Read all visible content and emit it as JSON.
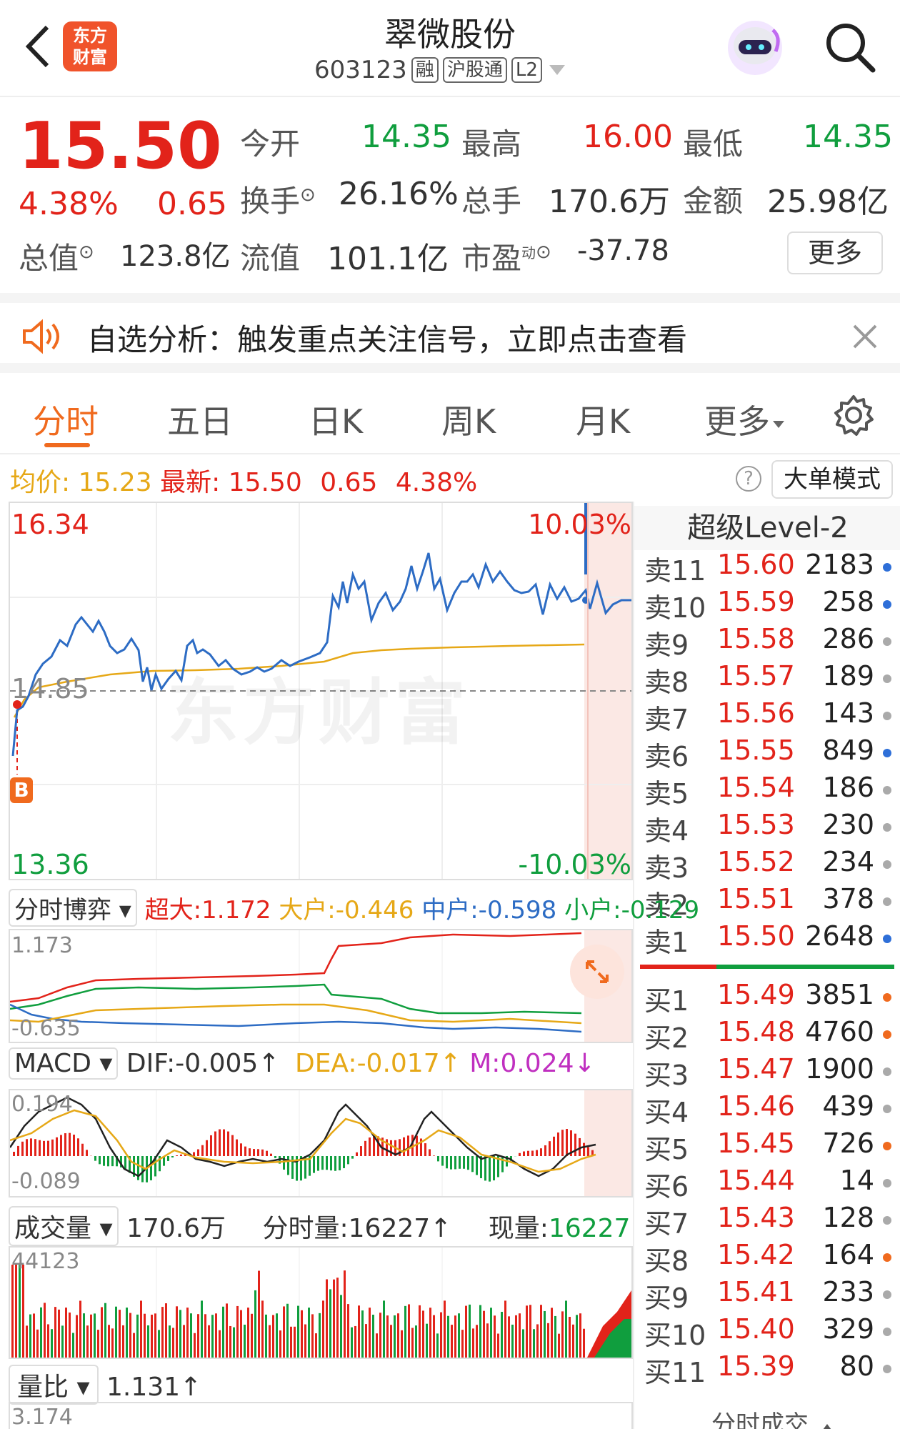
{
  "header": {
    "back_label": "<",
    "logo_line1": "东方",
    "logo_line2": "财富",
    "title": "翠微股份",
    "code": "603123",
    "tags": [
      "融",
      "沪股通",
      "L2"
    ]
  },
  "quote": {
    "price": "15.50",
    "change_pct": "4.38%",
    "change": "0.65",
    "open_label": "今开",
    "open": "14.35",
    "high_label": "最高",
    "high": "16.00",
    "low_label": "最低",
    "low": "14.35",
    "turnover_label": "换手",
    "turnover": "26.16%",
    "volume_label": "总手",
    "volume": "170.6万",
    "amount_label": "金额",
    "amount": "25.98亿",
    "mktcap_label": "总值",
    "mktcap": "123.8亿",
    "float_label": "流值",
    "float": "101.1亿",
    "pe_label": "市盈",
    "pe_sup": "动",
    "pe": "-37.78",
    "more_label": "更多"
  },
  "notice": {
    "text": "自选分析：触发重点关注信号，立即点击查看"
  },
  "tabs": [
    "分时",
    "五日",
    "日K",
    "周K",
    "月K",
    "更多"
  ],
  "info_bar": {
    "avg_label": "均价:",
    "avg": "15.23",
    "latest_label": "最新:",
    "latest": "15.50",
    "change": "0.65",
    "pct": "4.38%",
    "mode_label": "大单模式"
  },
  "main_chart": {
    "y_max": "16.34",
    "y_max_pct": "10.03%",
    "y_mid": "14.85",
    "y_min": "13.36",
    "y_min_pct": "-10.03%",
    "watermark": "东方财富",
    "b_marker": "B"
  },
  "order_book": {
    "title": "超级Level-2",
    "sells": [
      {
        "label": "卖11",
        "price": "15.60",
        "vol": "2183",
        "dot": "#2e6fd8"
      },
      {
        "label": "卖10",
        "price": "15.59",
        "vol": "258",
        "dot": "#2e6fd8"
      },
      {
        "label": "卖9",
        "price": "15.58",
        "vol": "286",
        "dot": "#aaaaaa"
      },
      {
        "label": "卖8",
        "price": "15.57",
        "vol": "189",
        "dot": "#aaaaaa"
      },
      {
        "label": "卖7",
        "price": "15.56",
        "vol": "143",
        "dot": "#aaaaaa"
      },
      {
        "label": "卖6",
        "price": "15.55",
        "vol": "849",
        "dot": "#2e6fd8"
      },
      {
        "label": "卖5",
        "price": "15.54",
        "vol": "186",
        "dot": "#aaaaaa"
      },
      {
        "label": "卖4",
        "price": "15.53",
        "vol": "230",
        "dot": "#aaaaaa"
      },
      {
        "label": "卖3",
        "price": "15.52",
        "vol": "234",
        "dot": "#aaaaaa"
      },
      {
        "label": "卖2",
        "price": "15.51",
        "vol": "378",
        "dot": "#aaaaaa"
      },
      {
        "label": "卖1",
        "price": "15.50",
        "vol": "2648",
        "dot": "#2e6fd8"
      }
    ],
    "buys": [
      {
        "label": "买1",
        "price": "15.49",
        "vol": "3851",
        "dot": "#f06a1e"
      },
      {
        "label": "买2",
        "price": "15.48",
        "vol": "4760",
        "dot": "#f06a1e"
      },
      {
        "label": "买3",
        "price": "15.47",
        "vol": "1900",
        "dot": "#aaaaaa"
      },
      {
        "label": "买4",
        "price": "15.46",
        "vol": "439",
        "dot": "#aaaaaa"
      },
      {
        "label": "买5",
        "price": "15.45",
        "vol": "726",
        "dot": "#f06a1e"
      },
      {
        "label": "买6",
        "price": "15.44",
        "vol": "14",
        "dot": "#aaaaaa"
      },
      {
        "label": "买7",
        "price": "15.43",
        "vol": "128",
        "dot": "#aaaaaa"
      },
      {
        "label": "买8",
        "price": "15.42",
        "vol": "164",
        "dot": "#f06a1e"
      },
      {
        "label": "买9",
        "price": "15.41",
        "vol": "233",
        "dot": "#aaaaaa"
      },
      {
        "label": "买10",
        "price": "15.40",
        "vol": "329",
        "dot": "#aaaaaa"
      },
      {
        "label": "买11",
        "price": "15.39",
        "vol": "80",
        "dot": "#aaaaaa"
      }
    ],
    "footer_label": "分时成交"
  },
  "game_panel": {
    "select_label": "分时博弈",
    "super_label": "超大:",
    "super": "1.172",
    "big_label": "大户:",
    "big": "-0.446",
    "mid_label": "中户:",
    "mid": "-0.598",
    "small_label": "小户:",
    "small": "-0.129",
    "y_max": "1.173",
    "y_min": "-0.635"
  },
  "macd_panel": {
    "select_label": "MACD",
    "dif_label": "DIF:",
    "dif": "-0.005",
    "dea_label": "DEA:",
    "dea": "-0.017",
    "m_label": "M:",
    "m": "0.024",
    "y_max": "0.194",
    "y_min": "-0.089"
  },
  "volume_panel": {
    "select_label": "成交量",
    "total": "170.6万",
    "minute_label": "分时量:",
    "minute": "16227",
    "now_label": "现量:",
    "now": "16227",
    "y_max": "44123"
  },
  "ratio_panel": {
    "select_label": "量比",
    "value": "1.131",
    "y_max": "3.174"
  }
}
